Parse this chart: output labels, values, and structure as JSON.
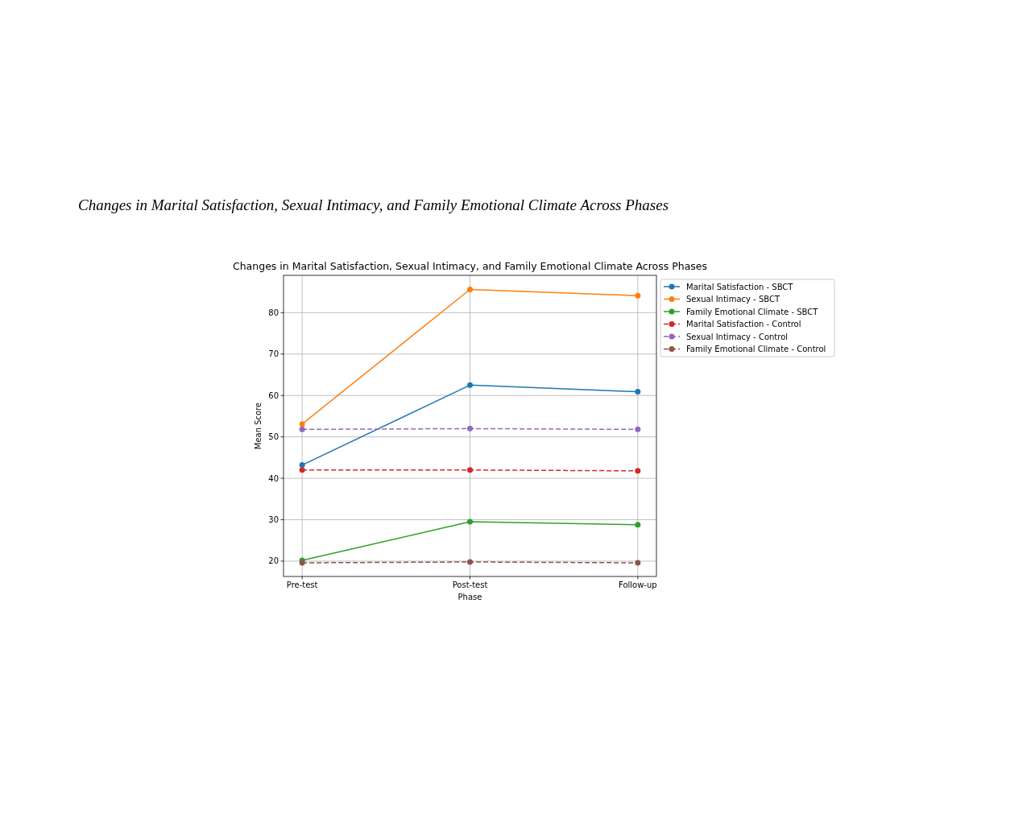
{
  "chart_data": {
    "type": "line",
    "title": "Changes in Marital Satisfaction, Sexual Intimacy, and Family Emotional Climate Across Phases",
    "xlabel": "Phase",
    "ylabel": "Mean Score",
    "annotations": [
      "Changes in Marital Satisfaction, Sexual Intimacy, and Family Emotional Climate Across Phases"
    ],
    "categories": [
      "Pre-test",
      "Post-test",
      "Follow-up"
    ],
    "series": [
      {
        "name": "Marital Satisfaction - SBCT",
        "color": "#1f77b4",
        "values": [
          43.2,
          62.5,
          60.9
        ]
      },
      {
        "name": "Sexual Intimacy - SBCT",
        "color": "#ff7f0e",
        "values": [
          53.1,
          85.6,
          84.1
        ]
      },
      {
        "name": "Family Emotional Climate - SBCT",
        "color": "#2ca02c",
        "values": [
          20.2,
          29.5,
          28.8
        ]
      },
      {
        "name": "Marital Satisfaction - Control",
        "color": "#d62728",
        "values": [
          42.0,
          42.0,
          41.8
        ],
        "line_style": "dashed"
      },
      {
        "name": "Sexual Intimacy - Control",
        "color": "#9467bd",
        "values": [
          51.8,
          52.0,
          51.8
        ],
        "line_style": "dashed"
      },
      {
        "name": "Family Emotional Climate - Control",
        "color": "#8c564b",
        "values": [
          19.6,
          19.8,
          19.6
        ],
        "line_style": "dashed"
      }
    ],
    "ylim": [
      16.3,
      89
    ],
    "yticks": [
      20,
      30,
      40,
      50,
      60,
      70,
      80
    ],
    "grid": true,
    "legend": "right",
    "marker": "circle",
    "line_style": "solid"
  }
}
